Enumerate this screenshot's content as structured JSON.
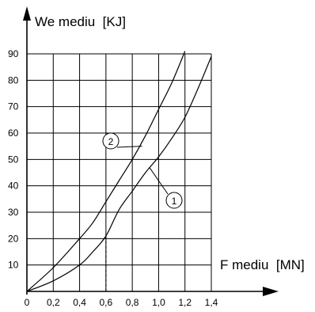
{
  "chart_data": {
    "type": "line",
    "ylabel": "We mediu  [KJ]",
    "xlabel": "F mediu  [MN]",
    "x_ticks": [
      "0",
      "0,2",
      "0,4",
      "0,6",
      "0,8",
      "1,0",
      "1,2",
      "1,4"
    ],
    "y_ticks": [
      "10",
      "20",
      "30",
      "40",
      "50",
      "60",
      "70",
      "80",
      "90"
    ],
    "xlim": [
      0,
      1.4
    ],
    "ylim": [
      0,
      90
    ],
    "grid": true,
    "series": [
      {
        "name": "1",
        "x": [
          0,
          0.2,
          0.4,
          0.5,
          0.6,
          0.7,
          0.8,
          0.9,
          1.0,
          1.1,
          1.2,
          1.3,
          1.4
        ],
        "values": [
          0,
          4,
          10,
          15,
          21,
          31,
          38,
          45,
          51,
          58,
          66,
          77,
          89
        ]
      },
      {
        "name": "2",
        "x": [
          0,
          0.2,
          0.4,
          0.5,
          0.6,
          0.7,
          0.8,
          0.9,
          1.0,
          1.1,
          1.2
        ],
        "values": [
          0,
          9,
          20,
          26,
          34,
          42,
          50,
          59,
          69,
          79,
          91
        ]
      }
    ],
    "annotations": [
      {
        "text": "2",
        "series": "2"
      },
      {
        "text": "1",
        "series": "1"
      }
    ],
    "reference_line_x": 0.6
  }
}
